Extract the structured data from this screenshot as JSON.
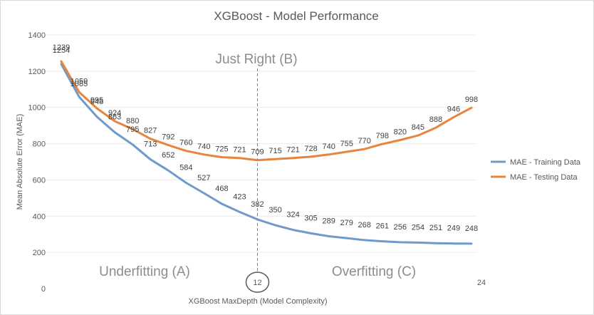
{
  "chart_data": {
    "type": "line",
    "title": "XGBoost - Model Performance",
    "xlabel": "XGBoost MaxDepth (Model Complexity)",
    "ylabel": "Mean Absolute Error (MAE)",
    "ylim": [
      0,
      1400
    ],
    "yticks": [
      "0",
      "200",
      "400",
      "600",
      "800",
      "1000",
      "1200",
      "1400"
    ],
    "x": [
      1,
      2,
      3,
      4,
      5,
      6,
      7,
      8,
      9,
      10,
      11,
      12,
      13,
      14,
      15,
      16,
      17,
      18,
      19,
      20,
      21,
      22,
      23,
      24
    ],
    "x_tick_labels": [
      {
        "x": 12,
        "label": "12"
      },
      {
        "x": 24,
        "label": "24"
      }
    ],
    "series": [
      {
        "name": "MAE - Training Data",
        "color": "#6f9acb",
        "values": [
          1239,
          1059,
          948,
          863,
          795,
          713,
          652,
          584,
          527,
          468,
          423,
          382,
          350,
          324,
          305,
          289,
          279,
          268,
          261,
          256,
          254,
          251,
          249,
          248
        ]
      },
      {
        "name": "MAE - Testing Data",
        "color": "#e8843d",
        "values": [
          1254,
          1085,
          995,
          924,
          880,
          827,
          792,
          760,
          740,
          725,
          721,
          709,
          715,
          721,
          728,
          740,
          755,
          770,
          798,
          820,
          845,
          888,
          946,
          998
        ]
      }
    ],
    "annotations": [
      {
        "text": "Just Right (B)"
      },
      {
        "text": "Underfitting (A)"
      },
      {
        "text": "Overfitting (C)"
      }
    ],
    "vertical_marker_x": 12,
    "legend_position": "right",
    "grid": true
  }
}
